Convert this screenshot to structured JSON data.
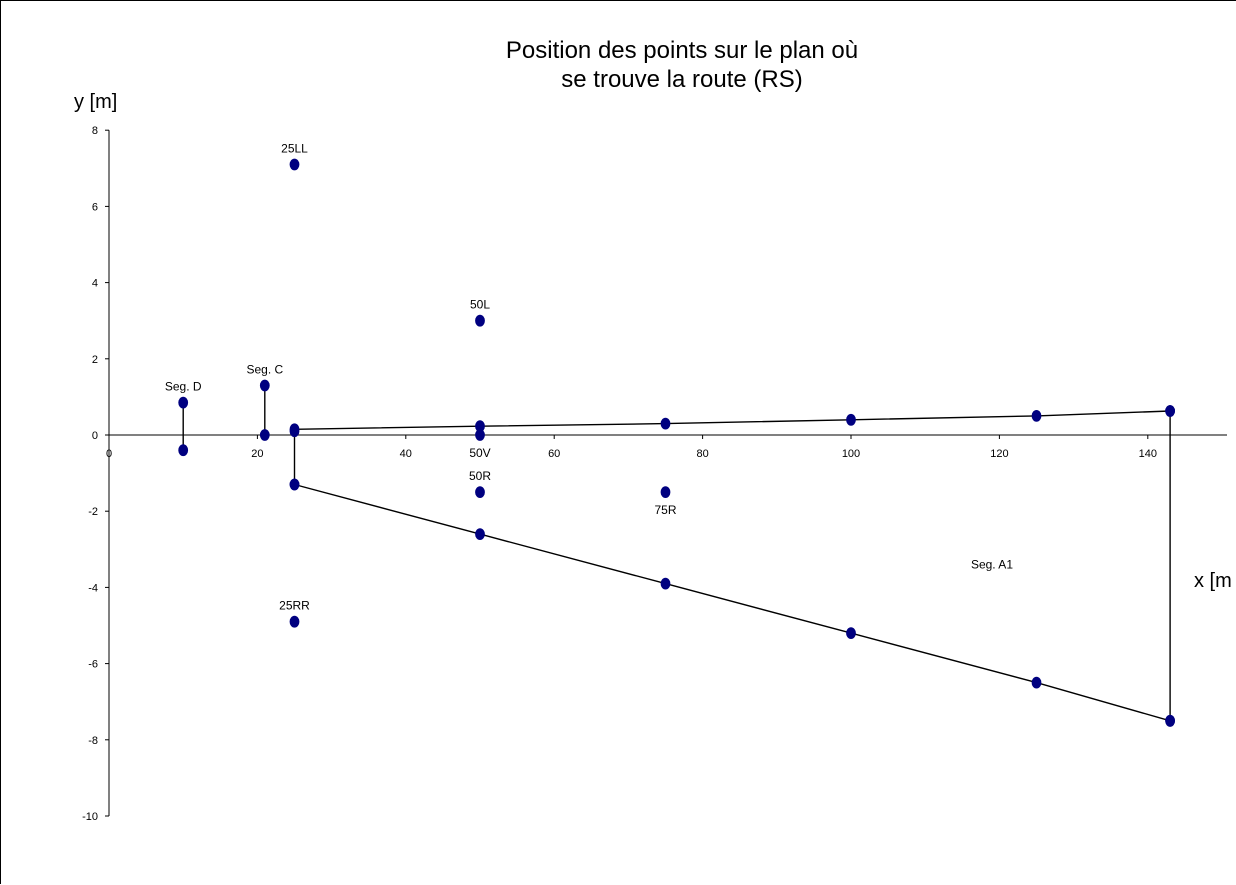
{
  "chart_data": {
    "type": "scatter",
    "title": [
      "Position des points sur le plan où",
      "se trouve la route (RS)"
    ],
    "xlabel": "x [m",
    "ylabel": "y [m]",
    "xlim": [
      0,
      150
    ],
    "ylim": [
      -10,
      8
    ],
    "x_ticks": [
      0,
      20,
      40,
      60,
      80,
      100,
      120,
      140
    ],
    "y_ticks": [
      8,
      6,
      4,
      2,
      0,
      -2,
      -4,
      -6,
      -8,
      -10
    ],
    "colors": {
      "marker": "#000080",
      "line": "#000000",
      "axis": "#000000"
    },
    "grid": false,
    "legend": "none",
    "series": [
      {
        "x": [
          25,
          50,
          75,
          100,
          125,
          143
        ],
        "y": [
          0.15,
          0.23,
          0.3,
          0.4,
          0.5,
          0.63
        ],
        "connected": true
      },
      {
        "x": [
          25,
          50,
          75,
          100,
          125,
          143
        ],
        "y": [
          -1.3,
          -2.6,
          -3.9,
          -5.2,
          -6.5,
          -7.5
        ],
        "connected": true
      },
      {
        "x": [
          25,
          25
        ],
        "y": [
          0.1,
          -1.3
        ],
        "connected": true
      },
      {
        "x": [
          143,
          143
        ],
        "y": [
          0.63,
          -7.5
        ],
        "connected": true
      },
      {
        "x": [
          21,
          21
        ],
        "y": [
          1.3,
          0
        ],
        "connected": true
      },
      {
        "x": [
          10,
          10
        ],
        "y": [
          0.85,
          -0.4
        ],
        "connected": true
      },
      {
        "x": [
          25
        ],
        "y": [
          7.1
        ],
        "connected": false
      },
      {
        "x": [
          50
        ],
        "y": [
          3.0
        ],
        "connected": false
      },
      {
        "x": [
          50
        ],
        "y": [
          0.0
        ],
        "connected": false
      },
      {
        "x": [
          50
        ],
        "y": [
          -1.5
        ],
        "connected": false
      },
      {
        "x": [
          75
        ],
        "y": [
          -1.5
        ],
        "connected": false
      },
      {
        "x": [
          25
        ],
        "y": [
          -4.9
        ],
        "connected": false
      }
    ],
    "annotations": [
      {
        "text": "25LL",
        "x": 25,
        "y": 7.1,
        "pos": "above"
      },
      {
        "text": "50L",
        "x": 50,
        "y": 3.0,
        "pos": "above"
      },
      {
        "text": "Seg. C",
        "x": 21,
        "y": 1.3,
        "pos": "above"
      },
      {
        "text": "Seg. D",
        "x": 10,
        "y": 0.85,
        "pos": "above"
      },
      {
        "text": "50V",
        "x": 50,
        "y": 0.0,
        "pos": "below"
      },
      {
        "text": "50R",
        "x": 50,
        "y": -1.5,
        "pos": "above"
      },
      {
        "text": "75R",
        "x": 75,
        "y": -1.5,
        "pos": "below"
      },
      {
        "text": "25RR",
        "x": 25,
        "y": -4.9,
        "pos": "above"
      },
      {
        "text": "Seg. A1",
        "x": 119,
        "y": -3.4,
        "pos": "center"
      }
    ]
  }
}
